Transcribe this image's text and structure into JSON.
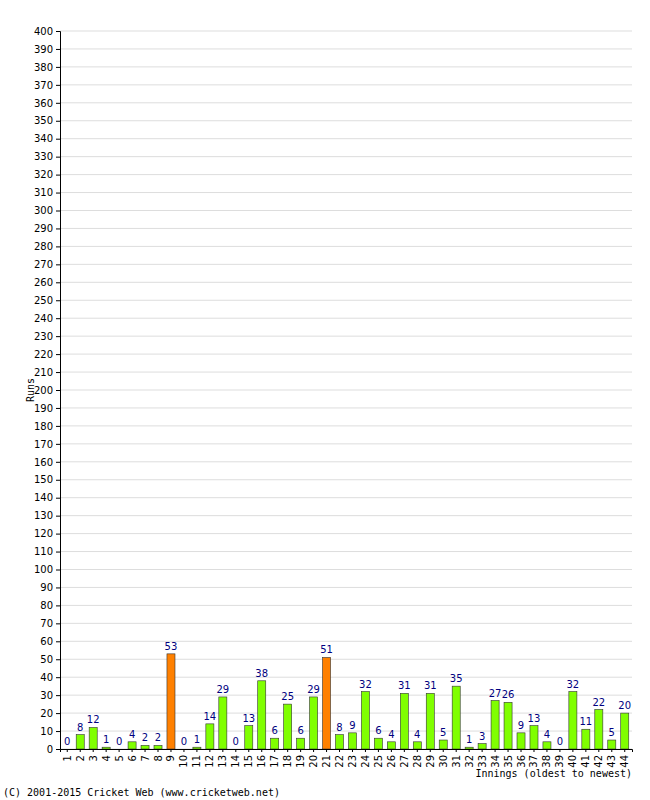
{
  "chart_data": {
    "type": "bar",
    "x_label": "Innings (oldest to newest)",
    "y_label": "Runs",
    "annotations": [
      "(C) 2001-2015 Cricket Web (www.cricketweb.net)"
    ],
    "categories": [
      "1",
      "2",
      "3",
      "4",
      "5",
      "6",
      "7",
      "8",
      "9",
      "10",
      "11",
      "12",
      "13",
      "14",
      "15",
      "16",
      "17",
      "18",
      "19",
      "20",
      "21",
      "22",
      "23",
      "24",
      "25",
      "26",
      "27",
      "28",
      "29",
      "30",
      "31",
      "32",
      "33",
      "34",
      "35",
      "36",
      "37",
      "38",
      "39",
      "40",
      "41",
      "42",
      "43",
      "44"
    ],
    "values": [
      0,
      8,
      12,
      1,
      0,
      4,
      2,
      2,
      53,
      0,
      1,
      14,
      29,
      0,
      13,
      38,
      6,
      25,
      6,
      29,
      51,
      8,
      9,
      32,
      6,
      4,
      31,
      4,
      31,
      5,
      35,
      1,
      3,
      27,
      26,
      9,
      13,
      4,
      0,
      32,
      11,
      22,
      5,
      20
    ],
    "colors": [
      "#80ff00",
      "#80ff00",
      "#80ff00",
      "#80ff00",
      "#80ff00",
      "#80ff00",
      "#80ff00",
      "#80ff00",
      "#ff8000",
      "#80ff00",
      "#80ff00",
      "#80ff00",
      "#80ff00",
      "#80ff00",
      "#80ff00",
      "#80ff00",
      "#80ff00",
      "#80ff00",
      "#80ff00",
      "#80ff00",
      "#ff8000",
      "#80ff00",
      "#80ff00",
      "#80ff00",
      "#80ff00",
      "#80ff00",
      "#80ff00",
      "#80ff00",
      "#80ff00",
      "#80ff00",
      "#80ff00",
      "#80ff00",
      "#80ff00",
      "#80ff00",
      "#80ff00",
      "#80ff00",
      "#80ff00",
      "#80ff00",
      "#80ff00",
      "#80ff00",
      "#80ff00",
      "#80ff00",
      "#80ff00",
      "#80ff00"
    ],
    "ylim": [
      0,
      400
    ],
    "yticks": [
      0,
      10,
      20,
      30,
      40,
      50,
      60,
      70,
      80,
      90,
      100,
      110,
      120,
      130,
      140,
      150,
      160,
      170,
      180,
      190,
      200,
      210,
      220,
      230,
      240,
      250,
      260,
      270,
      280,
      290,
      300,
      310,
      320,
      330,
      340,
      350,
      360,
      370,
      380,
      390,
      400
    ],
    "grid": true,
    "data_labels": true
  }
}
